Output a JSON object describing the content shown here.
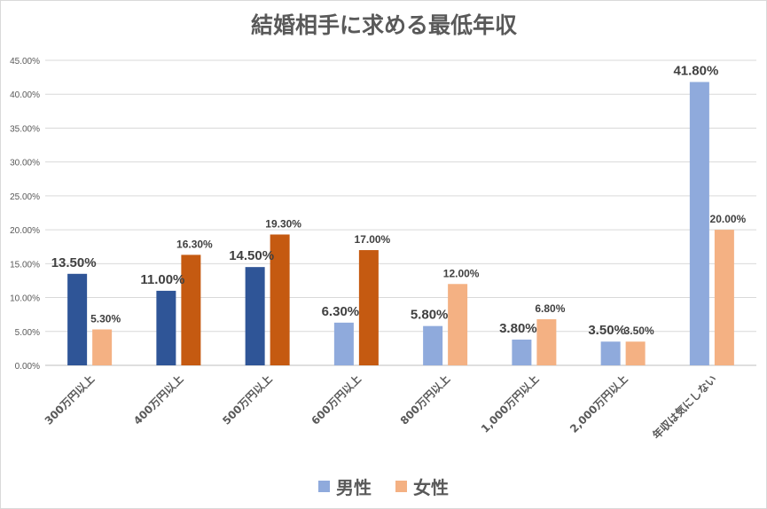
{
  "chart_data": {
    "type": "bar",
    "title": "結婚相手に求める最低年収",
    "categories": [
      "300万円以上",
      "400万円以上",
      "500万円以上",
      "600万円以上",
      "800万円以上",
      "1,000万円以上",
      "2,000万円以上",
      "年収は気にしない"
    ],
    "series": [
      {
        "name": "男性",
        "values": [
          13.5,
          11.0,
          14.5,
          6.3,
          5.8,
          3.8,
          3.5,
          41.8
        ],
        "labels": [
          "13.50%",
          "11.00%",
          "14.50%",
          "6.30%",
          "5.80%",
          "3.80%",
          "3.50%",
          "41.80%"
        ],
        "colors": [
          "#2f5597",
          "#2f5597",
          "#2f5597",
          "#8faadc",
          "#8faadc",
          "#8faadc",
          "#8faadc",
          "#8faadc"
        ]
      },
      {
        "name": "女性",
        "values": [
          5.3,
          16.3,
          19.3,
          17.0,
          12.0,
          6.8,
          3.5,
          20.0
        ],
        "labels": [
          "5.30%",
          "16.30%",
          "19.30%",
          "17.00%",
          "12.00%",
          "6.80%",
          "3.50%",
          "20.00%"
        ],
        "colors": [
          "#f4b183",
          "#c55a11",
          "#c55a11",
          "#c55a11",
          "#f4b183",
          "#f4b183",
          "#f4b183",
          "#f4b183"
        ]
      }
    ],
    "yticks": [
      "0.00%",
      "5.00%",
      "10.00%",
      "15.00%",
      "20.00%",
      "25.00%",
      "30.00%",
      "35.00%",
      "40.00%",
      "45.00%"
    ],
    "ylim": [
      0,
      45
    ],
    "grid": true,
    "legend_position": "bottom",
    "legend_colors": [
      "#8faadc",
      "#f4b183"
    ],
    "xlabel": "",
    "ylabel": ""
  }
}
